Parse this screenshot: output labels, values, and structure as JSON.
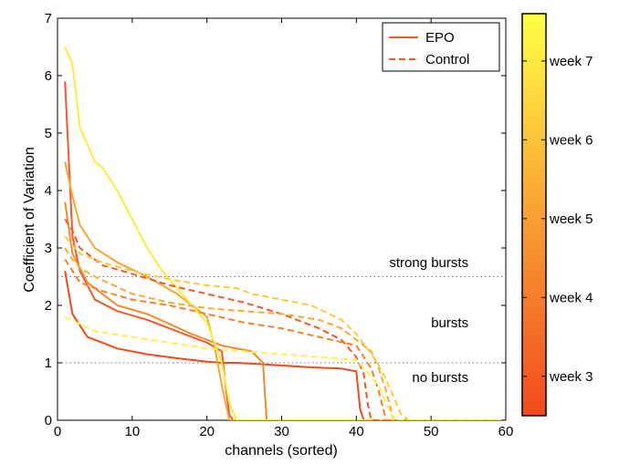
{
  "chart_data": {
    "type": "line",
    "xlabel": "channels (sorted)",
    "ylabel": "Coefficient of Variation",
    "xlim": [
      0,
      60
    ],
    "ylim": [
      0,
      7
    ],
    "x_ticks": [
      "0",
      "10",
      "20",
      "30",
      "40",
      "50",
      "60"
    ],
    "y_ticks": [
      "0",
      "1",
      "2",
      "3",
      "4",
      "5",
      "6",
      "7"
    ],
    "grid": false,
    "legend": {
      "placement": "top-right",
      "entries": [
        {
          "label": "EPO",
          "style": "solid"
        },
        {
          "label": "Control",
          "style": "dashed"
        }
      ]
    },
    "reference_lines": [
      {
        "y": 2.5,
        "style": "dotted"
      },
      {
        "y": 1.0,
        "style": "dotted"
      }
    ],
    "annotations": [
      {
        "text": "strong bursts",
        "x": 55,
        "y": 2.75
      },
      {
        "text": "bursts",
        "x": 55,
        "y": 1.7
      },
      {
        "text": "no bursts",
        "x": 55,
        "y": 0.75
      }
    ],
    "colorbar": {
      "ticks": [
        "week 3",
        "week 4",
        "week 5",
        "week 6",
        "week 7"
      ],
      "tick_values": [
        3,
        4,
        5,
        6,
        7
      ],
      "range": [
        2.5,
        7.6
      ],
      "colors": [
        "#F24A1D",
        "#FFFF44"
      ]
    },
    "series": [
      {
        "style": "solid",
        "color": "#F05A28",
        "x": [
          1,
          2,
          3,
          5,
          8,
          12,
          16,
          20,
          22,
          22.5,
          23,
          23.5,
          60
        ],
        "y": [
          5.9,
          3.2,
          2.6,
          2.1,
          1.9,
          1.75,
          1.55,
          1.35,
          1.2,
          0.6,
          0.1,
          0,
          0
        ]
      },
      {
        "style": "solid",
        "color": "#F24A1D",
        "x": [
          1,
          2,
          4,
          8,
          12,
          16,
          20,
          22,
          24,
          28,
          34,
          38,
          40,
          40.5,
          41,
          60
        ],
        "y": [
          2.6,
          1.85,
          1.45,
          1.25,
          1.15,
          1.08,
          1.02,
          1.0,
          1.0,
          0.97,
          0.92,
          0.9,
          0.85,
          0.2,
          0,
          0
        ]
      },
      {
        "style": "solid",
        "color": "#F68A2B",
        "x": [
          1,
          2,
          4,
          8,
          12,
          18,
          22,
          26,
          27.5,
          28,
          60
        ],
        "y": [
          3.8,
          2.9,
          2.4,
          2.0,
          1.85,
          1.5,
          1.3,
          1.2,
          1.0,
          0,
          0
        ]
      },
      {
        "style": "solid",
        "color": "#F9A533",
        "x": [
          1,
          2,
          3,
          5,
          8,
          12,
          16,
          18,
          20,
          21,
          22,
          23,
          60
        ],
        "y": [
          4.5,
          3.9,
          3.4,
          3.0,
          2.75,
          2.5,
          2.2,
          2.0,
          1.8,
          1.3,
          0.6,
          0,
          0
        ]
      },
      {
        "style": "solid",
        "color": "#FFEB3C",
        "x": [
          1,
          2,
          3,
          4,
          5,
          6,
          8,
          10,
          12,
          14,
          16,
          18,
          20,
          22,
          23,
          24,
          60
        ],
        "y": [
          6.5,
          6.2,
          5.1,
          4.8,
          4.5,
          4.4,
          4.0,
          3.5,
          3.0,
          2.6,
          2.3,
          2.0,
          1.7,
          1.0,
          0.3,
          0,
          0
        ]
      },
      {
        "style": "dashed",
        "color": "#F45A26",
        "x": [
          1,
          2,
          3,
          6,
          10,
          15,
          20,
          25,
          30,
          35,
          38,
          40,
          41,
          41.5,
          42,
          60
        ],
        "y": [
          3.5,
          3.3,
          3.0,
          2.7,
          2.55,
          2.35,
          2.2,
          2.05,
          1.85,
          1.6,
          1.4,
          1.1,
          0.8,
          0.3,
          0,
          0
        ]
      },
      {
        "style": "dashed",
        "color": "#F6802B",
        "x": [
          1,
          2,
          3,
          6,
          10,
          15,
          20,
          25,
          30,
          35,
          40,
          41,
          42,
          43,
          44,
          60
        ],
        "y": [
          2.8,
          2.6,
          2.4,
          2.25,
          2.1,
          2.0,
          1.85,
          1.7,
          1.6,
          1.45,
          1.3,
          1.1,
          0.9,
          0.5,
          0,
          0
        ]
      },
      {
        "style": "dashed",
        "color": "#FAAA33",
        "x": [
          1,
          2,
          3,
          5,
          10,
          15,
          20,
          25,
          30,
          35,
          38,
          40,
          42,
          43,
          44,
          45,
          60
        ],
        "y": [
          3.0,
          2.8,
          2.65,
          2.5,
          2.2,
          2.05,
          1.95,
          1.9,
          1.85,
          1.75,
          1.6,
          1.4,
          1.2,
          0.9,
          0.5,
          0,
          0
        ]
      },
      {
        "style": "dashed",
        "color": "#FBCB3C",
        "x": [
          1,
          2,
          3,
          6,
          10,
          15,
          20,
          24,
          26,
          30,
          34,
          38,
          40,
          42,
          43,
          44,
          45,
          46,
          47,
          60
        ],
        "y": [
          3.2,
          3.05,
          2.9,
          2.75,
          2.6,
          2.45,
          2.35,
          2.3,
          2.2,
          2.1,
          2.0,
          1.75,
          1.5,
          1.15,
          0.95,
          0.7,
          0.4,
          0.1,
          0,
          0
        ]
      },
      {
        "style": "dashed",
        "color": "#FFEF55",
        "x": [
          1,
          5,
          10,
          15,
          20,
          25,
          30,
          35,
          40,
          43,
          44,
          45,
          60
        ],
        "y": [
          1.8,
          1.55,
          1.45,
          1.35,
          1.25,
          1.2,
          1.15,
          1.1,
          1.05,
          0.6,
          0.3,
          0,
          0
        ]
      }
    ]
  }
}
